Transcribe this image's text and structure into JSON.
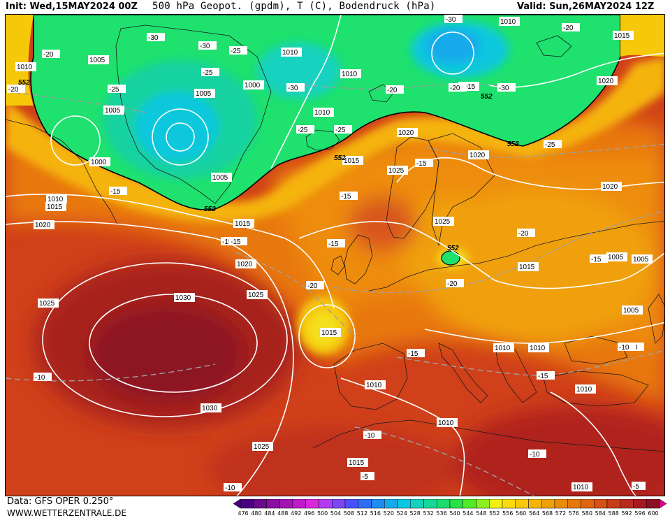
{
  "header": {
    "init": "Init: Wed,15MAY2024 00Z",
    "title": "500 hPa Geopot. (gpdm), T (C), Bodendruck (hPa)",
    "valid": "Valid: Sun,26MAY2024 12Z"
  },
  "footer": {
    "data_source": "Data: GFS OPER 0.250°",
    "website": "WWW.WETTERZENTRALE.DE"
  },
  "scale": {
    "values": [
      "476",
      "480",
      "484",
      "488",
      "492",
      "496",
      "500",
      "504",
      "508",
      "512",
      "516",
      "520",
      "524",
      "528",
      "532",
      "536",
      "540",
      "544",
      "548",
      "552",
      "556",
      "560",
      "564",
      "568",
      "572",
      "576",
      "580",
      "584",
      "588",
      "592",
      "596",
      "600"
    ],
    "colors": [
      "#4b0082",
      "#6a0a8c",
      "#8b0fa0",
      "#a314b4",
      "#bf1bc8",
      "#d728dc",
      "#b43cf0",
      "#7d46f5",
      "#4b50fa",
      "#2d6ef5",
      "#1e8cf0",
      "#14aaeb",
      "#0ac8e1",
      "#14d2be",
      "#19d796",
      "#1edc6e",
      "#28e146",
      "#50eb28",
      "#8cf01e",
      "#f0f014",
      "#fadc0a",
      "#fac80a",
      "#f5b40a",
      "#f0a00a",
      "#eb8c0a",
      "#e6780a",
      "#e1640f",
      "#d75014",
      "#c83c19",
      "#b9281e",
      "#a51a1e",
      "#8c0f23"
    ]
  },
  "map_labels": {
    "pressure": [
      "1010",
      "1005",
      "1005",
      "1005",
      "1000",
      "1000",
      "1010",
      "1010",
      "1010",
      "1015",
      "1015",
      "1020",
      "1020",
      "1020",
      "1025",
      "1025",
      "1025",
      "1030",
      "1030",
      "1025",
      "1015",
      "1010",
      "1020",
      "1020",
      "1015",
      "1010",
      "1005",
      "1005",
      "1005",
      "1010",
      "1010",
      "1010",
      "1010",
      "1010",
      "1015",
      "1020",
      "1025",
      "1015",
      "1010",
      "1005",
      "1015",
      "1015"
    ],
    "temperature": [
      "-20",
      "-20",
      "-25",
      "-30",
      "-25",
      "-25",
      "-30",
      "-20",
      "-30",
      "-25",
      "-30",
      "-25",
      "-20",
      "-20",
      "-30",
      "-25",
      "-15",
      "-15",
      "-15",
      "-15",
      "-20",
      "-20",
      "-20",
      "-15",
      "-15",
      "-15",
      "-10",
      "-15",
      "-10",
      "-10",
      "-10",
      "-10",
      "-5",
      "-5",
      "-15",
      "-10"
    ],
    "geopotential": [
      "552",
      "552",
      "552",
      "552",
      "552",
      "552"
    ]
  }
}
